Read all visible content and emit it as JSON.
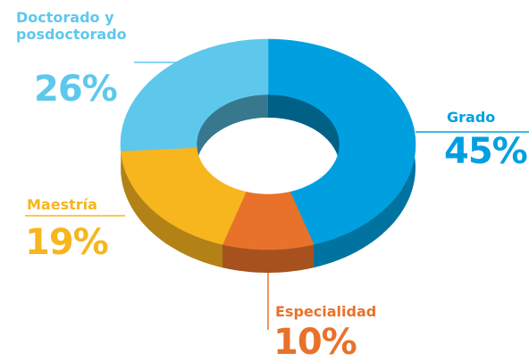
{
  "chart_data": {
    "type": "donut",
    "categories": [
      "Grado",
      "Especialidad",
      "Maestría",
      "Doctorado y posdoctorado"
    ],
    "values": [
      45,
      10,
      19,
      26
    ],
    "value_labels": [
      "45%",
      "10%",
      "19%",
      "26%"
    ],
    "colors": [
      "#00a0e0",
      "#e8722a",
      "#f7b51e",
      "#5ec8ec"
    ]
  }
}
